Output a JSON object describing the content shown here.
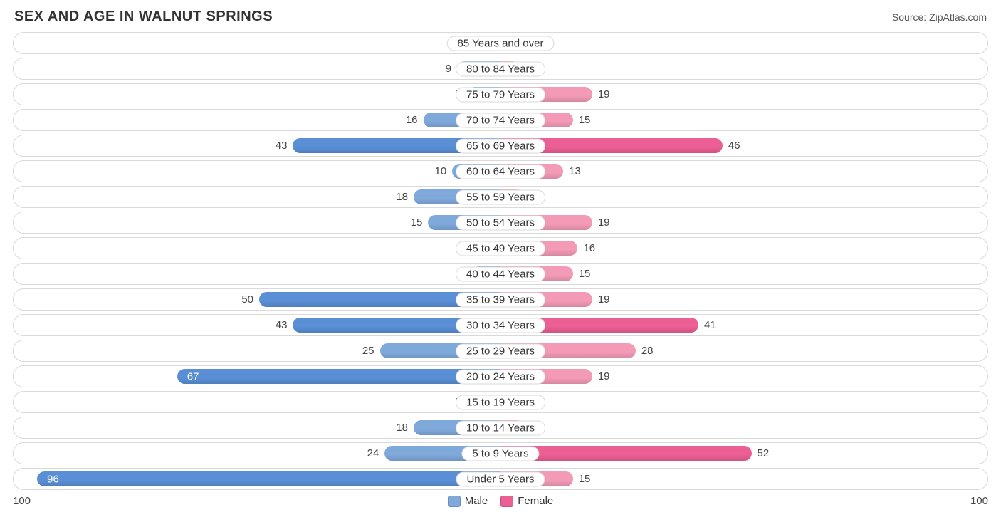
{
  "title": "SEX AND AGE IN WALNUT SPRINGS",
  "source": "Source: ZipAtlas.com",
  "axis_max": 100,
  "axis_label_left": "100",
  "axis_label_right": "100",
  "label_inside_threshold": 60,
  "colors": {
    "male_base": "#7fa9db",
    "male_strong": "#5a8fd6",
    "female_base": "#f39ab6",
    "female_strong": "#ec5f94",
    "track_border": "#d9d9d9",
    "pill_bg": "#ffffff",
    "text": "#333333"
  },
  "legend": [
    {
      "label": "Male",
      "color": "#7fa9db"
    },
    {
      "label": "Female",
      "color": "#ec5f94"
    }
  ],
  "intensity_threshold": 40,
  "rows": [
    {
      "label": "85 Years and over",
      "male": 0,
      "female": 0
    },
    {
      "label": "80 to 84 Years",
      "male": 9,
      "female": 4
    },
    {
      "label": "75 to 79 Years",
      "male": 7,
      "female": 19
    },
    {
      "label": "70 to 74 Years",
      "male": 16,
      "female": 15
    },
    {
      "label": "65 to 69 Years",
      "male": 43,
      "female": 46
    },
    {
      "label": "60 to 64 Years",
      "male": 10,
      "female": 13
    },
    {
      "label": "55 to 59 Years",
      "male": 18,
      "female": 5
    },
    {
      "label": "50 to 54 Years",
      "male": 15,
      "female": 19
    },
    {
      "label": "45 to 49 Years",
      "male": 3,
      "female": 16
    },
    {
      "label": "40 to 44 Years",
      "male": 6,
      "female": 15
    },
    {
      "label": "35 to 39 Years",
      "male": 50,
      "female": 19
    },
    {
      "label": "30 to 34 Years",
      "male": 43,
      "female": 41
    },
    {
      "label": "25 to 29 Years",
      "male": 25,
      "female": 28
    },
    {
      "label": "20 to 24 Years",
      "male": 67,
      "female": 19
    },
    {
      "label": "15 to 19 Years",
      "male": 7,
      "female": 5
    },
    {
      "label": "10 to 14 Years",
      "male": 18,
      "female": 5
    },
    {
      "label": "5 to 9 Years",
      "male": 24,
      "female": 52
    },
    {
      "label": "Under 5 Years",
      "male": 96,
      "female": 15
    }
  ]
}
